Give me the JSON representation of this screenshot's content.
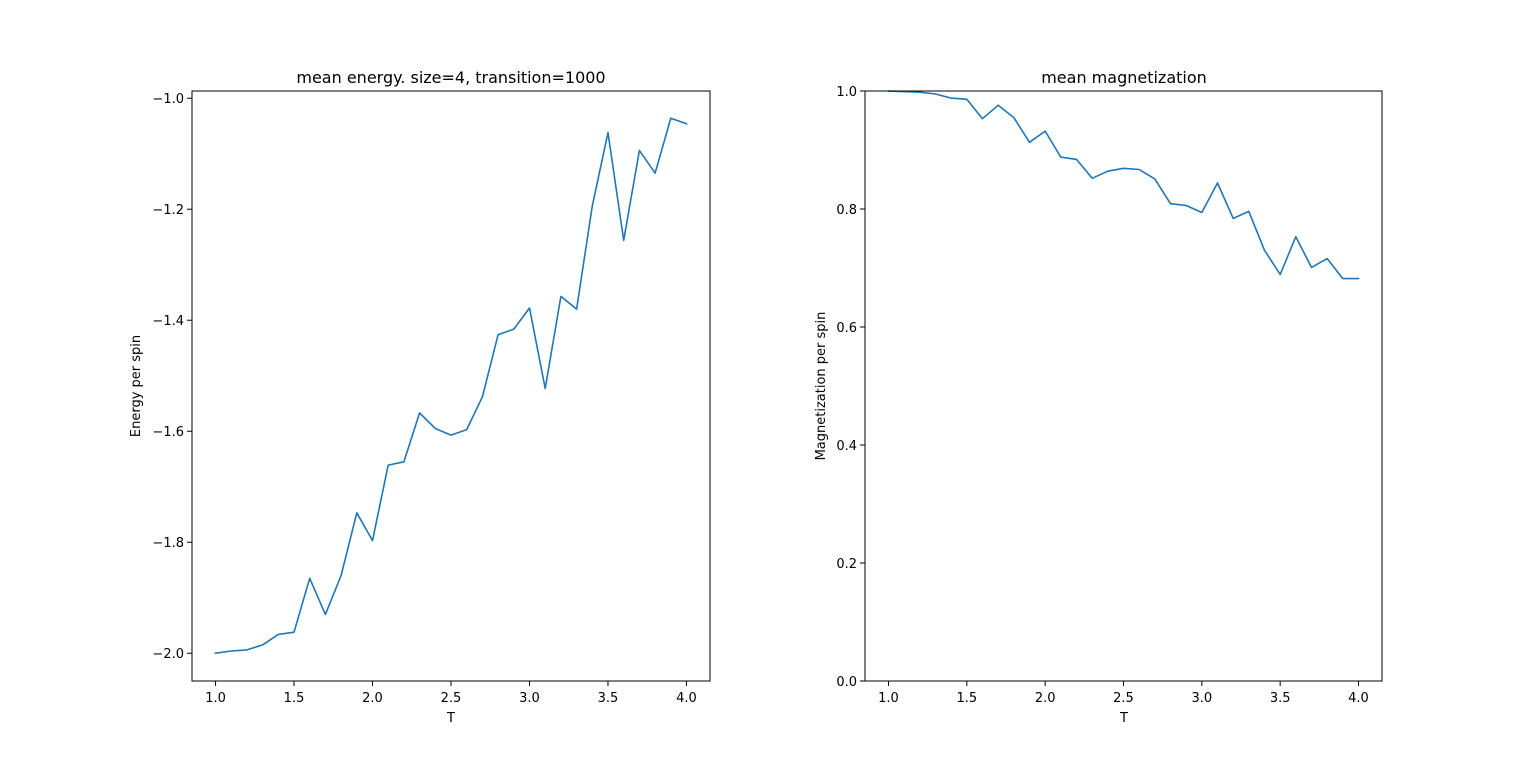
{
  "chart_data": [
    {
      "type": "line",
      "title": "mean energy. size=4, transition=1000",
      "xlabel": "T",
      "ylabel": "Energy per spin",
      "xlim": [
        0.85,
        4.15
      ],
      "ylim": [
        -2.05,
        -0.987
      ],
      "xticks": [
        1.0,
        1.5,
        2.0,
        2.5,
        3.0,
        3.5,
        4.0
      ],
      "xtick_labels": [
        "1.0",
        "1.5",
        "2.0",
        "2.5",
        "3.0",
        "3.5",
        "4.0"
      ],
      "yticks": [
        -2.0,
        -1.8,
        -1.6,
        -1.4,
        -1.2,
        -1.0
      ],
      "ytick_labels": [
        "−2.0",
        "−1.8",
        "−1.6",
        "−1.4",
        "−1.2",
        "−1.0"
      ],
      "grid": false,
      "color": "#1f77b4",
      "x": [
        1.0,
        1.1,
        1.2,
        1.3,
        1.4,
        1.5,
        1.6,
        1.7,
        1.8,
        1.9,
        2.0,
        2.1,
        2.2,
        2.3,
        2.4,
        2.5,
        2.6,
        2.7,
        2.8,
        2.9,
        3.0,
        3.1,
        3.2,
        3.3,
        3.4,
        3.5,
        3.6,
        3.7,
        3.8,
        3.9,
        4.0
      ],
      "y": [
        -2.0,
        -1.996,
        -1.994,
        -1.985,
        -1.966,
        -1.962,
        -1.865,
        -1.93,
        -1.86,
        -1.747,
        -1.797,
        -1.661,
        -1.655,
        -1.567,
        -1.595,
        -1.607,
        -1.597,
        -1.538,
        -1.426,
        -1.416,
        -1.378,
        -1.523,
        -1.357,
        -1.38,
        -1.194,
        -1.062,
        -1.256,
        -1.094,
        -1.135,
        -1.036,
        -1.046
      ]
    },
    {
      "type": "line",
      "title": "mean magnetization",
      "xlabel": "T",
      "ylabel": "Magnetization per spin",
      "xlim": [
        0.85,
        4.15
      ],
      "ylim": [
        0.0,
        1.0
      ],
      "xticks": [
        1.0,
        1.5,
        2.0,
        2.5,
        3.0,
        3.5,
        4.0
      ],
      "xtick_labels": [
        "1.0",
        "1.5",
        "2.0",
        "2.5",
        "3.0",
        "3.5",
        "4.0"
      ],
      "yticks": [
        0.0,
        0.2,
        0.4,
        0.6,
        0.8,
        1.0
      ],
      "ytick_labels": [
        "0.0",
        "0.2",
        "0.4",
        "0.6",
        "0.8",
        "1.0"
      ],
      "grid": false,
      "color": "#1f77b4",
      "x": [
        1.0,
        1.1,
        1.2,
        1.3,
        1.4,
        1.5,
        1.6,
        1.7,
        1.8,
        1.9,
        2.0,
        2.1,
        2.2,
        2.3,
        2.4,
        2.5,
        2.6,
        2.7,
        2.8,
        2.9,
        3.0,
        3.1,
        3.2,
        3.3,
        3.4,
        3.5,
        3.6,
        3.7,
        3.8,
        3.9,
        4.0
      ],
      "y": [
        1.0,
        0.999,
        0.998,
        0.995,
        0.988,
        0.986,
        0.953,
        0.976,
        0.955,
        0.913,
        0.932,
        0.888,
        0.884,
        0.852,
        0.864,
        0.869,
        0.867,
        0.851,
        0.809,
        0.806,
        0.794,
        0.844,
        0.784,
        0.796,
        0.73,
        0.689,
        0.753,
        0.701,
        0.716,
        0.682,
        0.682
      ]
    }
  ]
}
